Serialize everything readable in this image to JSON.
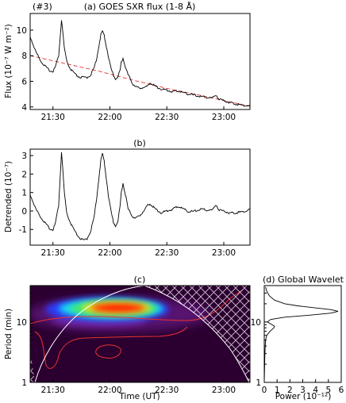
{
  "chart_data": [
    {
      "type": "line",
      "panel_tag": "(#3)",
      "title": "(a) GOES SXR flux (1-8 Å)",
      "ylabel": "Flux (10⁻⁷ W m⁻²)",
      "ylim": [
        3.8,
        11.3
      ],
      "yticks": [
        4,
        6,
        8,
        10
      ],
      "xlim": [
        21.3,
        23.23
      ],
      "xticks": [
        {
          "x": 21.5,
          "label": "21:30"
        },
        {
          "x": 22.0,
          "label": "22:00"
        },
        {
          "x": 22.5,
          "label": "22:30"
        },
        {
          "x": 23.0,
          "label": "23:00"
        }
      ],
      "series": [
        {
          "color": "#000000",
          "x": [
            21.3,
            21.35,
            21.4,
            21.45,
            21.48,
            21.5,
            21.52,
            21.55,
            21.565,
            21.575,
            21.585,
            21.6,
            21.62,
            21.65,
            21.7,
            21.74,
            21.77,
            21.8,
            21.83,
            21.86,
            21.88,
            21.9,
            21.92,
            21.935,
            21.95,
            21.97,
            21.99,
            22.01,
            22.03,
            22.05,
            22.07,
            22.09,
            22.1,
            22.115,
            22.125,
            22.14,
            22.16,
            22.18,
            22.2,
            22.22,
            22.25,
            22.3,
            22.33,
            22.35,
            22.4,
            22.45,
            22.5,
            22.55,
            22.6,
            22.65,
            22.7,
            22.75,
            22.8,
            22.85,
            22.9,
            22.93,
            22.96,
            23.0,
            23.05,
            23.1,
            23.15,
            23.2,
            23.23
          ],
          "y": [
            9.5,
            8.3,
            7.5,
            7.0,
            6.8,
            6.8,
            7.1,
            8.0,
            9.6,
            10.8,
            10.0,
            8.6,
            7.6,
            7.0,
            6.5,
            6.3,
            6.3,
            6.3,
            6.5,
            7.0,
            7.6,
            8.6,
            9.6,
            9.9,
            9.6,
            8.7,
            7.8,
            7.0,
            6.5,
            6.2,
            6.3,
            6.9,
            7.5,
            7.8,
            7.5,
            7.0,
            6.5,
            6.2,
            5.8,
            5.6,
            5.5,
            5.5,
            5.6,
            5.9,
            5.6,
            5.4,
            5.3,
            5.2,
            5.25,
            5.1,
            5.0,
            4.9,
            4.8,
            4.75,
            4.7,
            4.95,
            4.6,
            4.5,
            4.35,
            4.25,
            4.15,
            4.1,
            4.05
          ]
        },
        {
          "color": "#e8332e",
          "style": "dashed",
          "x": [
            21.3,
            21.6,
            21.9,
            22.2,
            22.5,
            22.8,
            23.0,
            23.23
          ],
          "y": [
            8.0,
            7.4,
            6.8,
            6.1,
            5.45,
            4.9,
            4.5,
            4.05
          ]
        }
      ]
    },
    {
      "type": "line",
      "title": "(b)",
      "ylabel": "Detrended (10⁻⁷)",
      "ylim": [
        -1.85,
        3.35
      ],
      "yticks": [
        -1,
        0,
        1,
        2,
        3
      ],
      "xlim": [
        21.3,
        23.23
      ],
      "xticks": [
        {
          "x": 21.5,
          "label": "21:30"
        },
        {
          "x": 22.0,
          "label": "22:00"
        },
        {
          "x": 22.5,
          "label": "22:30"
        },
        {
          "x": 23.0,
          "label": "23:00"
        }
      ],
      "series": [
        {
          "color": "#000000",
          "x": [
            21.3,
            21.35,
            21.4,
            21.45,
            21.48,
            21.5,
            21.52,
            21.55,
            21.565,
            21.575,
            21.585,
            21.6,
            21.62,
            21.65,
            21.7,
            21.74,
            21.77,
            21.8,
            21.83,
            21.86,
            21.88,
            21.9,
            21.92,
            21.935,
            21.95,
            21.97,
            21.99,
            22.01,
            22.03,
            22.05,
            22.07,
            22.09,
            22.1,
            22.115,
            22.125,
            22.14,
            22.16,
            22.18,
            22.2,
            22.22,
            22.25,
            22.3,
            22.33,
            22.35,
            22.4,
            22.45,
            22.5,
            22.55,
            22.6,
            22.65,
            22.7,
            22.75,
            22.8,
            22.85,
            22.9,
            22.93,
            22.96,
            23.0,
            23.05,
            23.1,
            23.15,
            23.2,
            23.23
          ],
          "y": [
            0.9,
            0.1,
            -0.4,
            -0.8,
            -1.0,
            -1.0,
            -0.7,
            0.3,
            2.0,
            3.2,
            2.4,
            1.0,
            -0.1,
            -0.6,
            -1.2,
            -1.5,
            -1.6,
            -1.5,
            -1.1,
            -0.4,
            0.5,
            1.6,
            2.7,
            3.1,
            2.7,
            1.7,
            0.7,
            0.0,
            -0.6,
            -0.8,
            -0.6,
            0.3,
            1.0,
            1.5,
            1.2,
            0.8,
            0.1,
            -0.1,
            -0.3,
            -0.4,
            -0.3,
            0.0,
            0.3,
            0.4,
            0.1,
            -0.1,
            0.0,
            0.1,
            0.25,
            0.1,
            -0.05,
            0.0,
            0.1,
            0.05,
            0.05,
            0.35,
            0.05,
            0.0,
            -0.1,
            -0.1,
            -0.05,
            0.0,
            0.1
          ]
        }
      ]
    },
    {
      "type": "heatmap",
      "title": "(c)",
      "xlabel": "Time (UT)",
      "ylabel": "Period (min)",
      "y_scale": "log",
      "ylim": [
        1,
        40
      ],
      "yticks": [
        {
          "v": 1,
          "label": "1"
        },
        {
          "v": 10,
          "label": "10"
        }
      ],
      "xlim": [
        21.3,
        23.23
      ],
      "xticks": [
        {
          "x": 21.5,
          "label": "21:30"
        },
        {
          "x": 22.0,
          "label": "22:00"
        },
        {
          "x": 22.5,
          "label": "22:30"
        },
        {
          "x": 23.0,
          "label": "23:00"
        }
      ],
      "colors": {
        "background": "#2b0030",
        "peak": "#ff1a00",
        "contour": "#e8332e",
        "cone_hatch": "#ffffff"
      },
      "peak": {
        "time": 21.95,
        "period": 15
      }
    },
    {
      "type": "line",
      "title": "(d) Global Wavelet",
      "xlabel": "Power (10⁻¹²)",
      "y_scale": "log",
      "ylim": [
        1,
        40
      ],
      "yticks": [
        {
          "v": 1,
          "label": "1"
        },
        {
          "v": 10,
          "label": "10"
        }
      ],
      "xlim": [
        0,
        6
      ],
      "xticks": [
        0,
        1,
        2,
        3,
        4,
        5,
        6
      ],
      "series": [
        {
          "color": "#000000",
          "period": [
            1.0,
            3.0,
            5.0,
            6.0,
            7.0,
            8.0,
            8.5,
            9.0,
            10.0,
            11.0,
            12.0,
            13.0,
            14.0,
            15.0,
            16.0,
            17.0,
            18.5,
            20.0,
            23.0,
            27.0,
            32.0,
            38.0
          ],
          "power": [
            0.0,
            0.05,
            0.1,
            0.2,
            0.45,
            0.75,
            0.8,
            0.6,
            0.25,
            0.5,
            1.6,
            3.6,
            5.2,
            5.75,
            5.2,
            4.1,
            2.6,
            1.6,
            0.8,
            0.4,
            0.2,
            0.1
          ]
        }
      ]
    }
  ]
}
